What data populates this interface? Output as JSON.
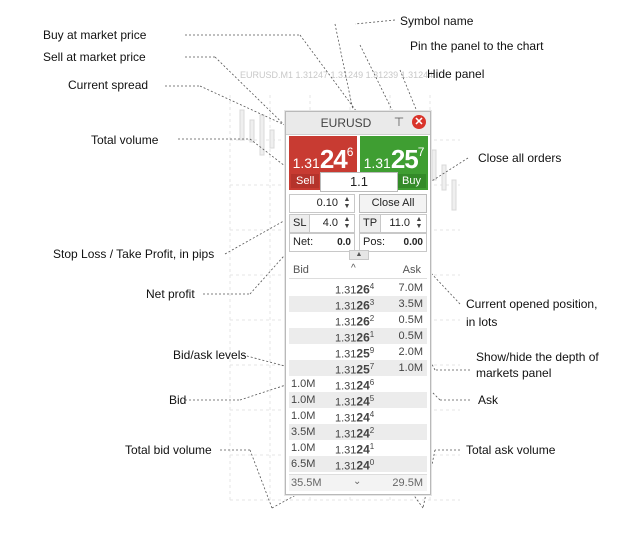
{
  "header_ticker": "EURUSD.M1  1.31247 1.31249 1.31239 1.31244",
  "callouts": {
    "symbol_name": "Symbol  name",
    "pin_panel": "Pin the panel to the chart",
    "hide_panel": "Hide panel",
    "buy_market": "Buy at market price",
    "sell_market": "Sell at market price",
    "current_spread": "Current spread",
    "total_volume": "Total volume",
    "close_all_orders": "Close all orders",
    "sl_tp": "Stop Loss / Take Profit, in pips",
    "net_profit": "Net profit",
    "current_position": "Current opened position,",
    "current_position_2": "in lots",
    "bid_ask_levels": "Bid/ask levels",
    "show_hide_dom": "Show/hide the depth of",
    "show_hide_dom_2": "markets panel",
    "bid": "Bid",
    "ask": "Ask",
    "total_bid_volume": "Total bid volume",
    "total_ask_volume": "Total ask volume"
  },
  "panel": {
    "symbol": "EURUSD",
    "sell": {
      "prefix": "1.31",
      "big": "24",
      "sup": "6",
      "label": "Sell"
    },
    "buy": {
      "prefix": "1.31",
      "big": "25",
      "sup": "7",
      "label": "Buy"
    },
    "volume": "1.1",
    "lot": "0.10",
    "close_all": "Close All",
    "sl_label": "SL",
    "sl_value": "4.0",
    "tp_label": "TP",
    "tp_value": "11.0",
    "net_label": "Net:",
    "net_value": "0.0",
    "pos_label": "Pos:",
    "pos_value": "0.00"
  },
  "dom": {
    "bid_header": "Bid",
    "ask_header": "Ask",
    "asks": [
      {
        "price": "1.3126",
        "sup": "4",
        "vol": "7.0M"
      },
      {
        "price": "1.3126",
        "sup": "3",
        "vol": "3.5M"
      },
      {
        "price": "1.3126",
        "sup": "2",
        "vol": "0.5M"
      },
      {
        "price": "1.3126",
        "sup": "1",
        "vol": "0.5M"
      },
      {
        "price": "1.3125",
        "sup": "9",
        "vol": "2.0M"
      },
      {
        "price": "1.3125",
        "sup": "7",
        "vol": "1.0M"
      }
    ],
    "bids": [
      {
        "price": "1.3124",
        "sup": "6",
        "vol": "1.0M"
      },
      {
        "price": "1.3124",
        "sup": "5",
        "vol": "1.0M"
      },
      {
        "price": "1.3124",
        "sup": "4",
        "vol": "1.0M"
      },
      {
        "price": "1.3124",
        "sup": "2",
        "vol": "3.5M"
      },
      {
        "price": "1.3124",
        "sup": "1",
        "vol": "1.0M"
      },
      {
        "price": "1.3124",
        "sup": "0",
        "vol": "6.5M"
      }
    ],
    "total_bid": "35.5M",
    "total_ask": "29.5M"
  }
}
